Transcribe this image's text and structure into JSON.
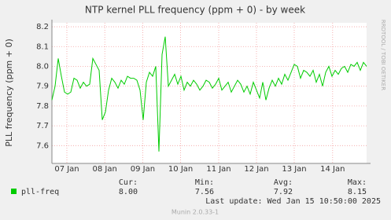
{
  "chart_data": {
    "type": "line",
    "title": "NTP kernel PLL frequency (ppm + 0) - by week",
    "y_label": "PLL frequency (ppm + 0)",
    "side_label": "RRDTOOL / TOBI OETIKER",
    "grid": true,
    "ylim": [
      7.51,
      8.22
    ],
    "yticks": [
      7.6,
      7.7,
      7.8,
      7.9,
      {
        "value": 8,
        "label": "8.0"
      },
      8.1,
      8.2
    ],
    "xlim": [
      0,
      100
    ],
    "xticks": [
      {
        "value": 4.75,
        "label": "07 Jan"
      },
      {
        "value": 16.8,
        "label": "08 Jan"
      },
      {
        "value": 28.85,
        "label": "09 Jan"
      },
      {
        "value": 40.9,
        "label": "10 Jan"
      },
      {
        "value": 53,
        "label": "11 Jan"
      },
      {
        "value": 65,
        "label": "12 Jan"
      },
      {
        "value": 77,
        "label": "13 Jan"
      },
      {
        "value": 89.2,
        "label": "14 Jan"
      }
    ],
    "series": [
      {
        "name": "pll-freq",
        "color": "#00cc00",
        "values": [
          7.83,
          7.9,
          8.04,
          7.95,
          7.87,
          7.86,
          7.87,
          7.94,
          7.93,
          7.89,
          7.92,
          7.9,
          7.91,
          8.04,
          8.01,
          7.98,
          7.73,
          7.77,
          7.88,
          7.94,
          7.92,
          7.89,
          7.93,
          7.91,
          7.95,
          7.94,
          7.94,
          7.93,
          7.88,
          7.73,
          7.92,
          7.97,
          7.95,
          8.0,
          7.57,
          8.06,
          8.15,
          7.9,
          7.93,
          7.96,
          7.91,
          7.95,
          7.88,
          7.92,
          7.9,
          7.93,
          7.91,
          7.88,
          7.9,
          7.93,
          7.92,
          7.89,
          7.91,
          7.94,
          7.88,
          7.9,
          7.92,
          7.87,
          7.9,
          7.93,
          7.91,
          7.87,
          7.9,
          7.86,
          7.92,
          7.88,
          7.84,
          7.92,
          7.83,
          7.89,
          7.93,
          7.9,
          7.94,
          7.91,
          7.96,
          7.93,
          7.97,
          8.01,
          8.0,
          7.94,
          7.98,
          7.97,
          7.95,
          7.98,
          7.92,
          7.96,
          7.9,
          7.97,
          8.0,
          7.95,
          7.98,
          7.96,
          7.99,
          8.0,
          7.97,
          8.01,
          8.0,
          8.02,
          7.98,
          8.02,
          8.0
        ]
      }
    ],
    "legend_headers": [
      "Cur:",
      "Min:",
      "Avg:",
      "Max:"
    ],
    "legend_stats": [
      {
        "value": 8,
        "label": "8.00"
      },
      {
        "value": 7.56,
        "label": "7.56"
      },
      {
        "value": 7.92,
        "label": "7.92"
      },
      {
        "value": 8.15,
        "label": "8.15"
      }
    ],
    "last_update": "Last update: Wed Jan 15 10:50:00 2025",
    "footer": "Munin 2.0.33-1"
  }
}
